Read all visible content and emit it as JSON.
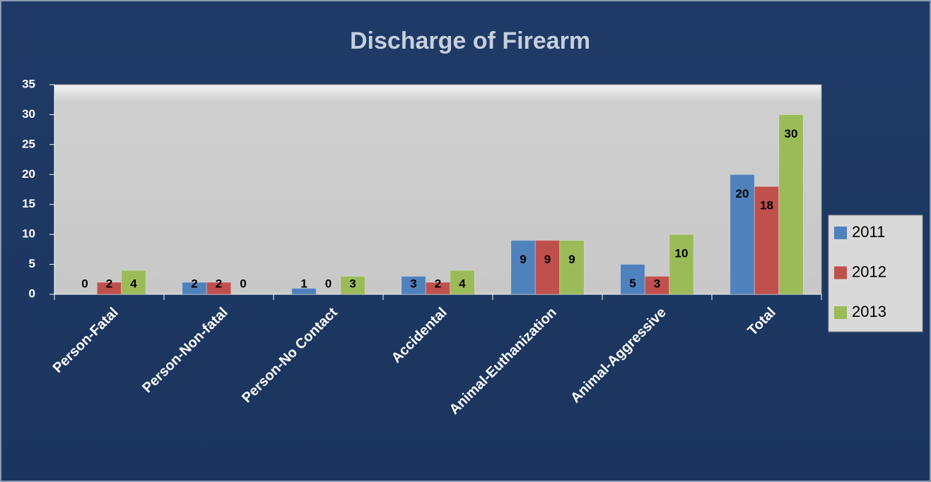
{
  "chart_data": {
    "type": "bar",
    "title": "Discharge of Firearm",
    "categories": [
      "Person-Fatal",
      "Person-Non-fatal",
      "Person-No Contact",
      "Accidental",
      "Animal-Euthanization",
      "Animal-Aggressive",
      "Total"
    ],
    "series": [
      {
        "name": "2011",
        "color": "#4f81bd",
        "values": [
          0,
          2,
          1,
          3,
          9,
          5,
          20
        ]
      },
      {
        "name": "2012",
        "color": "#c0504d",
        "values": [
          2,
          2,
          0,
          2,
          9,
          3,
          18
        ]
      },
      {
        "name": "2013",
        "color": "#9bbb59",
        "values": [
          4,
          0,
          3,
          4,
          9,
          10,
          30
        ]
      }
    ],
    "ylim": [
      0,
      35
    ],
    "yticks": [
      0,
      5,
      10,
      15,
      20,
      25,
      30,
      35
    ],
    "legend": "right"
  }
}
